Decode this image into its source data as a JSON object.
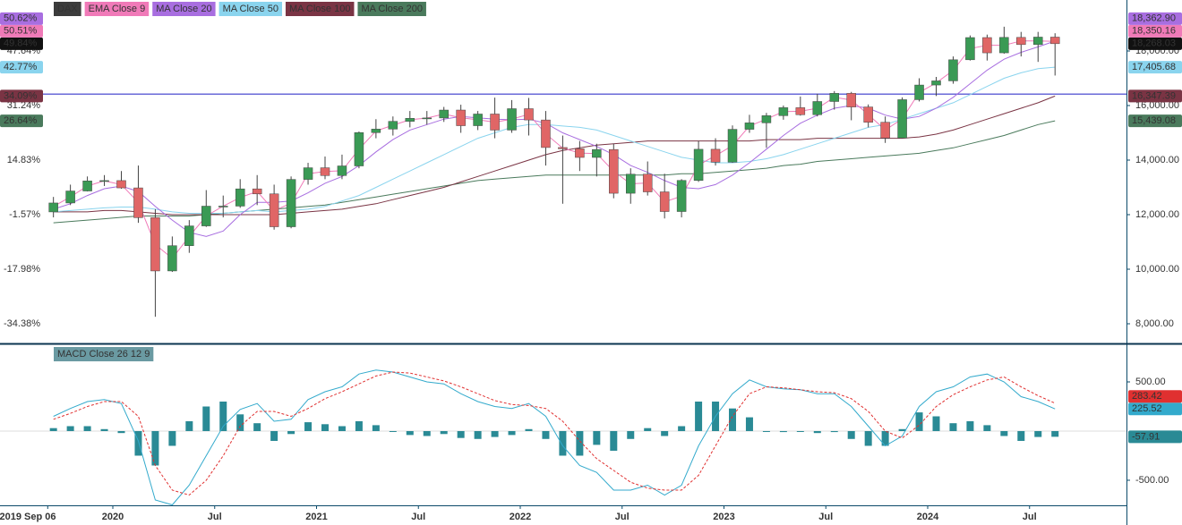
{
  "chart_data": [
    {
      "type": "candlestick",
      "name": "DAX",
      "legend_color": "#3c3c3c",
      "up_color": "#3a9a55",
      "down_color": "#e06666",
      "x": [
        "2019-09",
        "2019-10",
        "2019-11",
        "2019-12",
        "2020-01",
        "2020-02",
        "2020-03",
        "2020-04",
        "2020-05",
        "2020-06",
        "2020-07",
        "2020-08",
        "2020-09",
        "2020-10",
        "2020-11",
        "2020-12",
        "2021-01",
        "2021-02",
        "2021-03",
        "2021-04",
        "2021-05",
        "2021-06",
        "2021-07",
        "2021-08",
        "2021-09",
        "2021-10",
        "2021-11",
        "2021-12",
        "2022-01",
        "2022-02",
        "2022-03",
        "2022-04",
        "2022-05",
        "2022-06",
        "2022-07",
        "2022-08",
        "2022-09",
        "2022-10",
        "2022-11",
        "2022-12",
        "2023-01",
        "2023-02",
        "2023-03",
        "2023-04",
        "2023-05",
        "2023-06",
        "2023-07",
        "2023-08",
        "2023-09",
        "2023-10",
        "2023-11",
        "2023-12",
        "2024-01",
        "2024-02",
        "2024-03",
        "2024-04",
        "2024-05",
        "2024-06",
        "2024-07",
        "2024-08"
      ],
      "open": [
        12100,
        12428,
        12867,
        13236,
        13249,
        12981,
        11890,
        9936,
        10862,
        11587,
        12311,
        12313,
        12945,
        12761,
        11556,
        13291,
        13719,
        13433,
        13786,
        15008,
        15136,
        15421,
        15531,
        15544,
        15835,
        15261,
        15689,
        15100,
        15885,
        15471,
        14461,
        14415,
        14098,
        14388,
        12784,
        13484,
        12835,
        12114,
        13254,
        14397,
        13924,
        15128,
        15365,
        15629,
        15922,
        15664,
        16148,
        16447,
        15947,
        15387,
        14810,
        16215,
        16752,
        16904,
        17678,
        18492,
        17932,
        18498,
        18235,
        18509
      ],
      "high": [
        12650,
        13100,
        13400,
        13450,
        13600,
        13800,
        12200,
        11200,
        11800,
        12900,
        12700,
        13300,
        13450,
        13100,
        13400,
        13900,
        14130,
        14200,
        15050,
        15500,
        15600,
        15800,
        15800,
        15950,
        16030,
        15800,
        16290,
        16200,
        16280,
        15800,
        14900,
        14700,
        14600,
        14600,
        13700,
        13950,
        13500,
        13300,
        14700,
        14800,
        15270,
        15660,
        15730,
        16000,
        16330,
        16430,
        16530,
        16500,
        16040,
        15600,
        16300,
        17000,
        17050,
        17800,
        18570,
        18600,
        18890,
        18700,
        18700,
        18650
      ],
      "low": [
        11900,
        12350,
        12850,
        13050,
        12950,
        11700,
        8256,
        9900,
        10600,
        11550,
        11900,
        12250,
        12350,
        11450,
        11500,
        13100,
        13300,
        13300,
        13700,
        14800,
        14900,
        15200,
        15300,
        15400,
        15000,
        15100,
        14800,
        15000,
        14900,
        13800,
        12400,
        13600,
        13400,
        12600,
        12400,
        12700,
        11860,
        11900,
        13200,
        13800,
        13900,
        15000,
        14450,
        15480,
        15630,
        15600,
        15850,
        15460,
        15200,
        14630,
        14800,
        16150,
        16350,
        16800,
        17650,
        17650,
        17900,
        17800,
        17600,
        17100
      ],
      "close": [
        12428,
        12867,
        13236,
        13249,
        12981,
        11890,
        9936,
        10862,
        11587,
        12311,
        12313,
        12945,
        12761,
        11556,
        13291,
        13719,
        13433,
        13786,
        15008,
        15136,
        15421,
        15531,
        15544,
        15835,
        15261,
        15689,
        15100,
        15885,
        15471,
        14461,
        14415,
        14098,
        14388,
        12784,
        13484,
        12835,
        12114,
        13254,
        14397,
        13924,
        15128,
        15365,
        15629,
        15922,
        15664,
        16148,
        16447,
        15947,
        15387,
        14810,
        16215,
        16752,
        16904,
        17678,
        18492,
        17932,
        18498,
        18235,
        18509,
        18268.03
      ],
      "last": {
        "value": 18268.03,
        "label": "18,268.03"
      },
      "last_pct": {
        "value": 49.84,
        "label": "49.84%"
      },
      "series": [
        {
          "name": "EMA Close 9",
          "color": "#f07ab8",
          "values": [
            12300,
            12650,
            13050,
            13240,
            13100,
            12450,
            10900,
            10400,
            11200,
            11950,
            12310,
            12630,
            12850,
            12150,
            12420,
            13500,
            13580,
            13610,
            14400,
            15070,
            15280,
            15480,
            15540,
            15690,
            15550,
            15480,
            15390,
            15500,
            15680,
            14960,
            14440,
            14260,
            14240,
            13590,
            13130,
            13160,
            12470,
            12680,
            13820,
            14160,
            14530,
            15250,
            15500,
            15780,
            15790,
            15900,
            16300,
            16200,
            15670,
            15100,
            15510,
            16480,
            16830,
            17290,
            18090,
            18210,
            18210,
            18370,
            18370,
            18350.16
          ],
          "last": {
            "value": 18350.16,
            "label": "18,350.16"
          },
          "last_pct": {
            "value": 50.51,
            "label": "50.51%"
          }
        },
        {
          "name": "MA Close 20",
          "color": "#a86ee0",
          "values": [
            12200,
            12400,
            12700,
            12950,
            13050,
            12850,
            12300,
            11800,
            11350,
            11200,
            11400,
            12000,
            12450,
            12450,
            12500,
            12800,
            13150,
            13400,
            13800,
            14300,
            14750,
            15100,
            15300,
            15500,
            15600,
            15550,
            15500,
            15480,
            15500,
            15350,
            15000,
            14750,
            14500,
            14200,
            13800,
            13550,
            13250,
            13000,
            12950,
            13100,
            13450,
            13900,
            14400,
            14900,
            15350,
            15650,
            15900,
            16000,
            15900,
            15650,
            15500,
            15600,
            15900,
            16300,
            16800,
            17300,
            17700,
            17950,
            18150,
            18362.9
          ],
          "last": {
            "value": 18362.9,
            "label": "18,362.90"
          },
          "last_pct": {
            "value": 50.62,
            "label": "50.62%"
          }
        },
        {
          "name": "MA Close 50",
          "color": "#8ad4ee",
          "values": [
            12100,
            12150,
            12200,
            12250,
            12280,
            12280,
            12200,
            12100,
            12050,
            12050,
            12050,
            12100,
            12150,
            12100,
            12150,
            12200,
            12300,
            12500,
            12700,
            13000,
            13300,
            13600,
            13900,
            14200,
            14500,
            14800,
            15000,
            15200,
            15300,
            15300,
            15250,
            15200,
            15100,
            14900,
            14700,
            14500,
            14300,
            14100,
            14000,
            13900,
            13900,
            13950,
            14050,
            14200,
            14400,
            14600,
            14800,
            15000,
            15200,
            15300,
            15500,
            15700,
            15900,
            16100,
            16400,
            16700,
            17000,
            17200,
            17350,
            17405.68
          ],
          "last": {
            "value": 17405.68,
            "label": "17,405.68"
          },
          "last_pct": {
            "value": 42.77,
            "label": "42.77%"
          }
        },
        {
          "name": "MA Close 100",
          "color": "#7a3444",
          "values": [
            12100,
            12100,
            12100,
            12150,
            12150,
            12100,
            12050,
            12000,
            12000,
            12000,
            12000,
            12000,
            12000,
            12000,
            12050,
            12100,
            12150,
            12200,
            12300,
            12400,
            12550,
            12700,
            12850,
            13000,
            13200,
            13400,
            13600,
            13800,
            14000,
            14200,
            14350,
            14450,
            14550,
            14600,
            14650,
            14700,
            14700,
            14700,
            14700,
            14700,
            14700,
            14700,
            14750,
            14750,
            14750,
            14800,
            14800,
            14800,
            14800,
            14800,
            14800,
            14850,
            14950,
            15100,
            15300,
            15500,
            15700,
            15900,
            16100,
            16347.39
          ],
          "last": {
            "value": 16347.39,
            "label": "16,347.39"
          },
          "last_pct": {
            "value": 34.09,
            "label": "34.09%"
          }
        },
        {
          "name": "MA Close 200",
          "color": "#4a7a5c",
          "values": [
            11700,
            11750,
            11800,
            11850,
            11900,
            11950,
            11950,
            11950,
            11950,
            12000,
            12050,
            12100,
            12150,
            12200,
            12250,
            12300,
            12350,
            12450,
            12550,
            12650,
            12750,
            12850,
            12950,
            13050,
            13150,
            13250,
            13300,
            13350,
            13400,
            13450,
            13450,
            13450,
            13450,
            13450,
            13450,
            13450,
            13450,
            13500,
            13500,
            13550,
            13600,
            13650,
            13700,
            13800,
            13850,
            13950,
            14000,
            14050,
            14100,
            14150,
            14200,
            14250,
            14350,
            14450,
            14600,
            14750,
            14900,
            15100,
            15300,
            15439.08
          ],
          "last": {
            "value": 15439.08,
            "label": "15,439.08"
          },
          "last_pct": {
            "value": 26.64,
            "label": "26.64%"
          }
        }
      ],
      "hline": {
        "value": 16420,
        "color": "#6a6ad8"
      },
      "ylim": [
        7311,
        19869
      ],
      "yticks": [
        {
          "value": 8000,
          "label": "8,000.00"
        },
        {
          "value": 10000,
          "label": "10,000.00"
        },
        {
          "value": 12000,
          "label": "12,000.00"
        },
        {
          "value": 14000,
          "label": "14,000.00"
        },
        {
          "value": 16000,
          "label": "16,000.00"
        },
        {
          "value": 18000,
          "label": "18,000.00"
        }
      ],
      "y2lim": [
        -40.03,
        62.97
      ],
      "y2ticks": [
        {
          "value": -34.38,
          "label": "-34.38%"
        },
        {
          "value": -17.98,
          "label": "-17.98%"
        },
        {
          "value": -1.57,
          "label": "-1.57%"
        },
        {
          "value": 14.83,
          "label": "14.83%"
        },
        {
          "value": 31.24,
          "label": "31.24%"
        },
        {
          "value": 47.64,
          "label": "47.64%"
        }
      ],
      "xticks": [
        {
          "value": "2019-09-06",
          "label": "2019 Sep 06"
        },
        {
          "value": "2020-01",
          "label": "2020"
        },
        {
          "value": "2020-07",
          "label": "Jul"
        },
        {
          "value": "2021-01",
          "label": "2021"
        },
        {
          "value": "2021-07",
          "label": "Jul"
        },
        {
          "value": "2022-01",
          "label": "2022"
        },
        {
          "value": "2022-07",
          "label": "Jul"
        },
        {
          "value": "2023-01",
          "label": "2023"
        },
        {
          "value": "2023-07",
          "label": "Jul"
        },
        {
          "value": "2024-01",
          "label": "2024"
        },
        {
          "value": "2024-07",
          "label": "Jul"
        }
      ]
    },
    {
      "type": "macd",
      "title": "MACD Close 26 12 9",
      "title_color": "#6a9aa2",
      "macd": {
        "color": "#33aacc",
        "values": [
          150,
          230,
          300,
          320,
          280,
          -100,
          -700,
          -750,
          -550,
          -250,
          50,
          220,
          280,
          100,
          120,
          320,
          400,
          450,
          580,
          620,
          600,
          550,
          500,
          480,
          380,
          300,
          250,
          230,
          280,
          150,
          -150,
          -350,
          -420,
          -600,
          -600,
          -550,
          -650,
          -550,
          -150,
          150,
          380,
          520,
          450,
          430,
          420,
          380,
          380,
          250,
          50,
          -150,
          -50,
          250,
          400,
          450,
          550,
          580,
          500,
          350,
          300,
          225.52
        ],
        "last": {
          "value": 225.52,
          "label": "225.52"
        }
      },
      "signal": {
        "color": "#e03030",
        "values": [
          120,
          180,
          250,
          300,
          300,
          150,
          -350,
          -600,
          -650,
          -500,
          -250,
          50,
          200,
          200,
          150,
          230,
          330,
          400,
          480,
          560,
          600,
          590,
          550,
          510,
          450,
          380,
          310,
          270,
          260,
          230,
          100,
          -100,
          -280,
          -400,
          -520,
          -580,
          -600,
          -600,
          -450,
          -150,
          150,
          380,
          450,
          440,
          420,
          400,
          390,
          330,
          200,
          0,
          -70,
          60,
          250,
          370,
          450,
          520,
          550,
          450,
          360,
          283.42
        ],
        "last": {
          "value": 283.42,
          "label": "283.42"
        }
      },
      "histogram": {
        "color": "#2a8a95",
        "values": [
          30,
          50,
          50,
          20,
          -20,
          -250,
          -350,
          -150,
          100,
          250,
          300,
          170,
          80,
          -100,
          -30,
          90,
          70,
          50,
          100,
          60,
          0,
          -40,
          -50,
          -30,
          -70,
          -80,
          -60,
          -40,
          20,
          -80,
          -250,
          -250,
          -140,
          -200,
          -80,
          30,
          -50,
          50,
          300,
          300,
          230,
          140,
          0,
          -10,
          0,
          -20,
          -10,
          -80,
          -150,
          -150,
          20,
          190,
          150,
          80,
          100,
          60,
          -50,
          -100,
          -60,
          -57.91
        ],
        "last": {
          "value": -57.91,
          "label": "-57.91"
        }
      },
      "ylim": [
        -755,
        873
      ],
      "yticks": [
        {
          "value": 500,
          "label": "500.00"
        },
        {
          "value": -500,
          "label": "-500.00"
        }
      ]
    }
  ]
}
